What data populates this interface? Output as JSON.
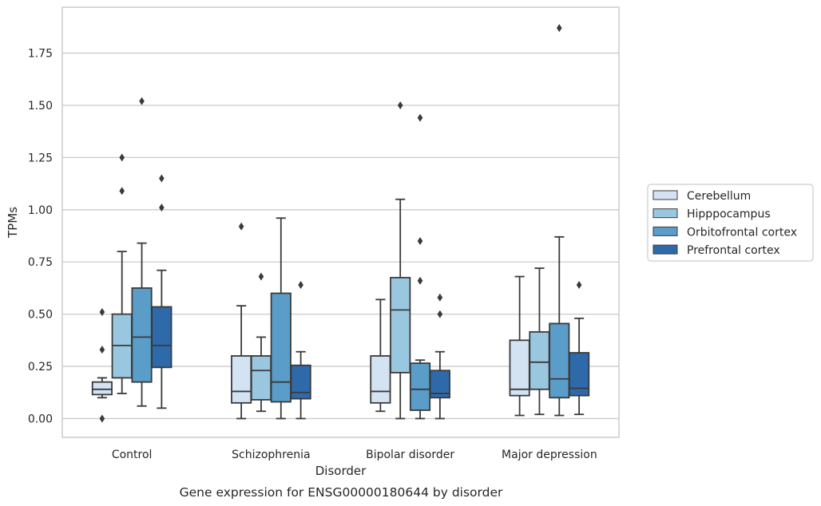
{
  "chart_data": {
    "type": "boxplot",
    "xlabel": "Disorder",
    "ylabel": "TPMs",
    "caption": "Gene expression for ENSG00000180644 by disorder",
    "categories": [
      "Control",
      "Schizophrenia",
      "Bipolar disorder",
      "Major depression"
    ],
    "ylim": [
      -0.09,
      1.97
    ],
    "yticks": [
      0.0,
      0.25,
      0.5,
      0.75,
      1.0,
      1.25,
      1.5,
      1.75
    ],
    "ytick_labels": [
      "0.00",
      "0.25",
      "0.50",
      "0.75",
      "1.00",
      "1.25",
      "1.50",
      "1.75"
    ],
    "grid": "horizontal",
    "legend_position": "right",
    "series": [
      {
        "name": "Cerebellum",
        "color": "#d4e3f2",
        "boxes": [
          {
            "whislo": 0.1,
            "q1": 0.115,
            "med": 0.14,
            "q3": 0.175,
            "whishi": 0.195,
            "fliers": [
              0.51,
              0.33,
              0.0
            ]
          },
          {
            "whislo": 0.0,
            "q1": 0.075,
            "med": 0.13,
            "q3": 0.3,
            "whishi": 0.54,
            "fliers": [
              0.92
            ]
          },
          {
            "whislo": 0.035,
            "q1": 0.075,
            "med": 0.13,
            "q3": 0.3,
            "whishi": 0.57,
            "fliers": []
          },
          {
            "whislo": 0.015,
            "q1": 0.11,
            "med": 0.14,
            "q3": 0.375,
            "whishi": 0.68,
            "fliers": []
          }
        ]
      },
      {
        "name": "Hipppocampus",
        "color": "#9ac7e0",
        "boxes": [
          {
            "whislo": 0.12,
            "q1": 0.195,
            "med": 0.35,
            "q3": 0.5,
            "whishi": 0.8,
            "fliers": [
              1.25,
              1.09
            ]
          },
          {
            "whislo": 0.035,
            "q1": 0.09,
            "med": 0.23,
            "q3": 0.3,
            "whishi": 0.39,
            "fliers": [
              0.68
            ]
          },
          {
            "whislo": 0.0,
            "q1": 0.22,
            "med": 0.52,
            "q3": 0.675,
            "whishi": 1.05,
            "fliers": [
              1.5
            ]
          },
          {
            "whislo": 0.02,
            "q1": 0.14,
            "med": 0.27,
            "q3": 0.415,
            "whishi": 0.72,
            "fliers": []
          }
        ]
      },
      {
        "name": "Orbitofrontal cortex",
        "color": "#5a9dc8",
        "boxes": [
          {
            "whislo": 0.06,
            "q1": 0.175,
            "med": 0.39,
            "q3": 0.625,
            "whishi": 0.84,
            "fliers": [
              1.52
            ]
          },
          {
            "whislo": 0.0,
            "q1": 0.08,
            "med": 0.175,
            "q3": 0.6,
            "whishi": 0.96,
            "fliers": []
          },
          {
            "whislo": 0.0,
            "q1": 0.04,
            "med": 0.14,
            "q3": 0.265,
            "whishi": 0.28,
            "fliers": [
              1.44,
              0.85,
              0.66
            ]
          },
          {
            "whislo": 0.015,
            "q1": 0.1,
            "med": 0.19,
            "q3": 0.455,
            "whishi": 0.87,
            "fliers": [
              1.87
            ]
          }
        ]
      },
      {
        "name": "Prefrontal cortex",
        "color": "#2e6aaa",
        "boxes": [
          {
            "whislo": 0.05,
            "q1": 0.245,
            "med": 0.35,
            "q3": 0.535,
            "whishi": 0.71,
            "fliers": [
              1.15,
              1.01
            ]
          },
          {
            "whislo": 0.0,
            "q1": 0.095,
            "med": 0.125,
            "q3": 0.255,
            "whishi": 0.32,
            "fliers": [
              0.64
            ]
          },
          {
            "whislo": 0.0,
            "q1": 0.1,
            "med": 0.12,
            "q3": 0.23,
            "whishi": 0.32,
            "fliers": [
              0.58,
              0.5
            ]
          },
          {
            "whislo": 0.02,
            "q1": 0.11,
            "med": 0.145,
            "q3": 0.315,
            "whishi": 0.48,
            "fliers": [
              0.64
            ]
          }
        ]
      }
    ]
  }
}
